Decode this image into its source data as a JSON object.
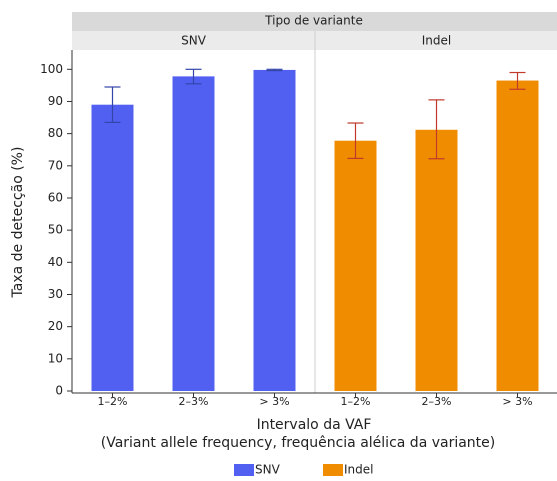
{
  "chart_data": {
    "type": "bar",
    "facet_title": "Tipo de variante",
    "ylabel": "Taxa de detecção (%)",
    "xlabel": [
      "Intervalo da VAF",
      "(Variant allele frequency, frequência alélica da variante)"
    ],
    "categories": [
      "1–2%",
      "2–3%",
      "> 3%"
    ],
    "series": [
      {
        "name": "SNV",
        "color": "#5260f2",
        "error_color": "#3346a8",
        "values": [
          89,
          97.8,
          99.8
        ],
        "ci_low": [
          83.5,
          95.5,
          99.6
        ],
        "ci_high": [
          94.5,
          100,
          100
        ]
      },
      {
        "name": "Indel",
        "color": "#f08c00",
        "error_color": "#c0392b",
        "values": [
          77.8,
          81.2,
          96.5
        ],
        "ci_low": [
          72.3,
          72.2,
          93.8
        ],
        "ci_high": [
          83.3,
          90.5,
          99
        ]
      }
    ],
    "ylim": [
      0,
      106
    ],
    "yticks": [
      0,
      10,
      20,
      30,
      40,
      50,
      60,
      70,
      80,
      90,
      100
    ]
  }
}
